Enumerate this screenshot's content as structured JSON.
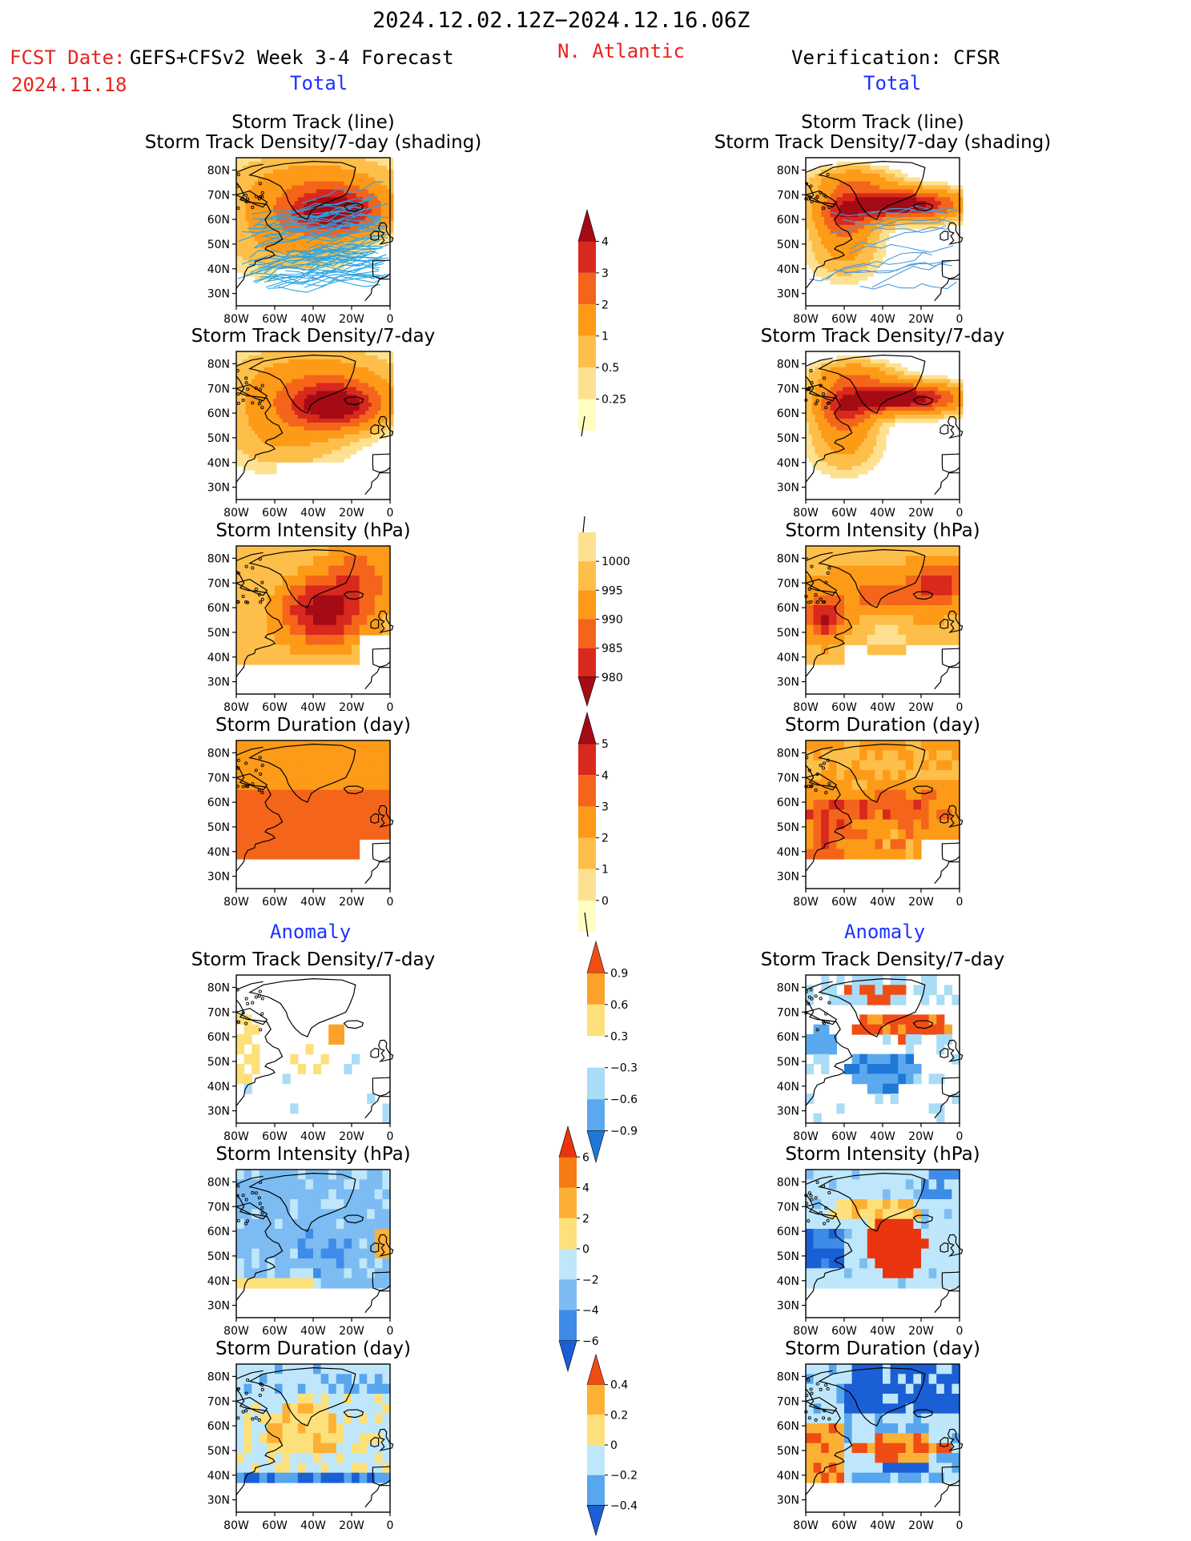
{
  "header": {
    "period": "2024.12.02.12Z−2024.12.16.06Z",
    "fcst_date_label": "FCST Date:",
    "fcst_date": "2024.11.18",
    "forecast_title": "GEFS+CFSv2 Week 3-4 Forecast",
    "region": "N. Atlantic",
    "verification": "Verification: CFSR",
    "total_left": "Total",
    "total_right": "Total",
    "anomaly_left": "Anomaly",
    "anomaly_right": "Anomaly"
  },
  "colors": {
    "red_text": "#e8231e",
    "blue_text": "#1e32ff"
  },
  "panels": {
    "track_title_1": "Storm Track (line)",
    "track_title_2": "Storm Track Density/7-day (shading)",
    "density": "Storm Track Density/7-day",
    "intensity": "Storm Intensity (hPa)",
    "duration": "Storm Duration (day)"
  },
  "axes": {
    "lat_ticks": [
      "80N",
      "70N",
      "60N",
      "50N",
      "40N",
      "30N"
    ],
    "lon_ticks": [
      "80W",
      "60W",
      "40W",
      "20W",
      "0"
    ]
  },
  "colorbars": {
    "density_total": [
      "0.25",
      "0.5",
      "1",
      "2",
      "3",
      "4"
    ],
    "intensity_total": [
      "1000",
      "995",
      "990",
      "985",
      "980"
    ],
    "duration_total": [
      "0",
      "1",
      "2",
      "3",
      "4",
      "5"
    ],
    "density_anom": [
      "0.9",
      "0.6",
      "0.3",
      "−0.3",
      "−0.6",
      "−0.9"
    ],
    "intensity_anom": [
      "6",
      "4",
      "2",
      "0",
      "−2",
      "−4",
      "−6"
    ],
    "duration_anom": [
      "0.4",
      "0.2",
      "0",
      "−0.2",
      "−0.4"
    ]
  },
  "chart_data": [
    {
      "type": "heatmap",
      "title": "Storm Track (line) / Storm Track Density/7-day (shading)",
      "source": "GEFS+CFSv2",
      "xlim": [
        -80,
        0
      ],
      "ylim": [
        25,
        85
      ],
      "scale": [
        "0.25",
        "0.5",
        "1",
        "2",
        "3",
        "4"
      ],
      "xlabel": "",
      "ylabel": ""
    },
    {
      "type": "heatmap",
      "title": "Storm Track (line) / Storm Track Density/7-day (shading)",
      "source": "CFSR",
      "xlim": [
        -80,
        0
      ],
      "ylim": [
        25,
        85
      ],
      "scale": [
        "0.25",
        "0.5",
        "1",
        "2",
        "3",
        "4"
      ],
      "xlabel": "",
      "ylabel": ""
    },
    {
      "type": "heatmap",
      "title": "Storm Track Density/7-day",
      "source": "GEFS+CFSv2",
      "xlim": [
        -80,
        0
      ],
      "ylim": [
        25,
        85
      ]
    },
    {
      "type": "heatmap",
      "title": "Storm Track Density/7-day",
      "source": "CFSR",
      "xlim": [
        -80,
        0
      ],
      "ylim": [
        25,
        85
      ]
    },
    {
      "type": "heatmap",
      "title": "Storm Intensity (hPa)",
      "source": "GEFS+CFSv2",
      "xlim": [
        -80,
        0
      ],
      "ylim": [
        25,
        85
      ],
      "scale": [
        "1000",
        "995",
        "990",
        "985",
        "980"
      ]
    },
    {
      "type": "heatmap",
      "title": "Storm Intensity (hPa)",
      "source": "CFSR",
      "xlim": [
        -80,
        0
      ],
      "ylim": [
        25,
        85
      ]
    },
    {
      "type": "heatmap",
      "title": "Storm Duration (day)",
      "source": "GEFS+CFSv2",
      "xlim": [
        -80,
        0
      ],
      "ylim": [
        25,
        85
      ],
      "scale": [
        "0",
        "1",
        "2",
        "3",
        "4",
        "5"
      ]
    },
    {
      "type": "heatmap",
      "title": "Storm Duration (day)",
      "source": "CFSR",
      "xlim": [
        -80,
        0
      ],
      "ylim": [
        25,
        85
      ]
    },
    {
      "type": "heatmap",
      "title": "Anomaly Storm Track Density/7-day",
      "source": "GEFS+CFSv2",
      "xlim": [
        -80,
        0
      ],
      "ylim": [
        25,
        85
      ],
      "scale": [
        "0.9",
        "0.6",
        "0.3",
        "−0.3",
        "−0.6",
        "−0.9"
      ]
    },
    {
      "type": "heatmap",
      "title": "Anomaly Storm Track Density/7-day",
      "source": "CFSR",
      "xlim": [
        -80,
        0
      ],
      "ylim": [
        25,
        85
      ]
    },
    {
      "type": "heatmap",
      "title": "Anomaly Storm Intensity (hPa)",
      "source": "GEFS+CFSv2",
      "xlim": [
        -80,
        0
      ],
      "ylim": [
        25,
        85
      ],
      "scale": [
        "6",
        "4",
        "2",
        "0",
        "−2",
        "−4",
        "−6"
      ]
    },
    {
      "type": "heatmap",
      "title": "Anomaly Storm Intensity (hPa)",
      "source": "CFSR",
      "xlim": [
        -80,
        0
      ],
      "ylim": [
        25,
        85
      ]
    },
    {
      "type": "heatmap",
      "title": "Anomaly Storm Duration (day)",
      "source": "GEFS+CFSv2",
      "xlim": [
        -80,
        0
      ],
      "ylim": [
        25,
        85
      ],
      "scale": [
        "0.4",
        "0.2",
        "0",
        "−0.2",
        "−0.4"
      ]
    },
    {
      "type": "heatmap",
      "title": "Anomaly Storm Duration (day)",
      "source": "CFSR",
      "xlim": [
        -80,
        0
      ],
      "ylim": [
        25,
        85
      ]
    }
  ]
}
